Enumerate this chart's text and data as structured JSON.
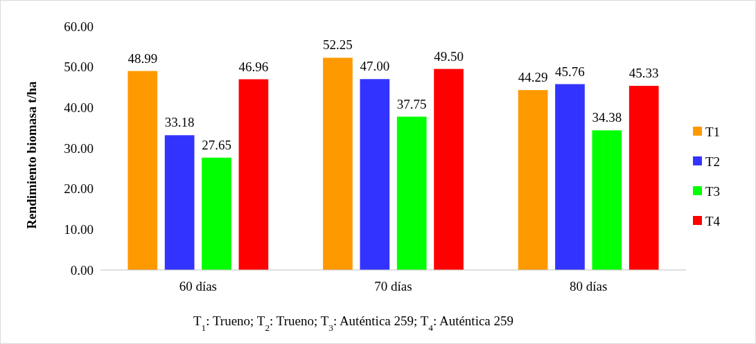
{
  "chart_data": {
    "type": "bar",
    "ylabel": "Rendimiento  biomasa t/ha",
    "categories": [
      "60 días",
      "70 días",
      "80 días"
    ],
    "series": [
      {
        "name": "T1",
        "color": "#ff9900",
        "values": [
          48.99,
          52.25,
          44.29
        ]
      },
      {
        "name": "T2",
        "color": "#3333ff",
        "values": [
          33.18,
          47.0,
          45.76
        ]
      },
      {
        "name": "T3",
        "color": "#00ff00",
        "values": [
          27.65,
          37.75,
          34.38
        ]
      },
      {
        "name": "T4",
        "color": "#ff0000",
        "values": [
          46.96,
          49.5,
          45.33
        ]
      }
    ],
    "value_labels": [
      [
        "48.99",
        "52.25",
        "44.29"
      ],
      [
        "33.18",
        "47.00",
        "45.76"
      ],
      [
        "27.65",
        "37.75",
        "34.38"
      ],
      [
        "46.96",
        "49.50",
        "45.33"
      ]
    ],
    "ylim": [
      0,
      60
    ],
    "yticks": [
      {
        "value": 0,
        "label": "0.00"
      },
      {
        "value": 10,
        "label": "10.00"
      },
      {
        "value": 20,
        "label": "20.00"
      },
      {
        "value": 30,
        "label": "30.00"
      },
      {
        "value": 40,
        "label": "40.00"
      },
      {
        "value": 50,
        "label": "50.00"
      },
      {
        "value": 60,
        "label": "60.00"
      }
    ],
    "grid": false,
    "legend": "right",
    "annotations": [
      "T$_{1}$: Trueno; T$_{2}$: Trueno; T$_{3}$: Auténtica 259; T$_{4}$: Auténtica 259"
    ]
  }
}
